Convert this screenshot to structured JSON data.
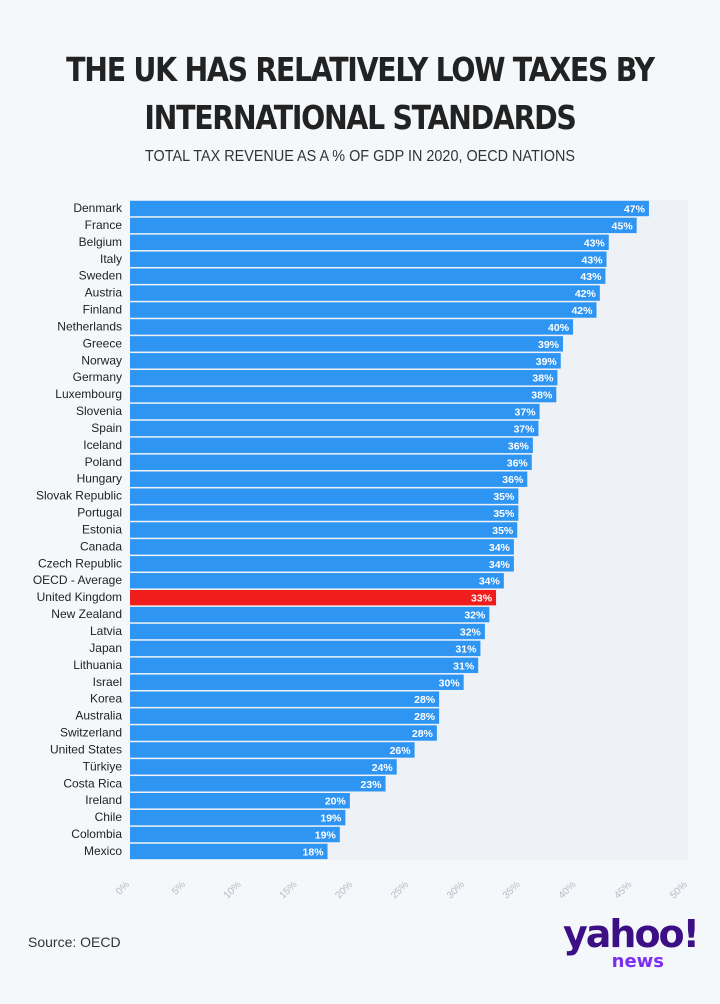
{
  "title_line1": "THE UK HAS RELATIVELY LOW TAXES BY",
  "title_line2": "INTERNATIONAL STANDARDS",
  "subtitle": "TOTAL TAX REVENUE AS A % OF GDP IN 2020, OECD NATIONS",
  "source": "Source: OECD",
  "logo": {
    "main": "yahoo!",
    "sub": "news"
  },
  "colors": {
    "bar": "#2f95f3",
    "highlight": "#f01d1d",
    "background": "#f5f8fb"
  },
  "chart_data": {
    "type": "bar",
    "orientation": "horizontal",
    "title": "THE UK HAS RELATIVELY LOW TAXES BY INTERNATIONAL STANDARDS",
    "subtitle": "TOTAL TAX REVENUE AS A % OF GDP IN 2020, OECD NATIONS",
    "xlim": [
      0,
      50
    ],
    "xticks": [
      "0%",
      "5%",
      "10%",
      "15%",
      "20%",
      "25%",
      "30%",
      "35%",
      "40%",
      "45%",
      "50%"
    ],
    "highlight": "United Kingdom",
    "categories": [
      "Denmark",
      "France",
      "Belgium",
      "Italy",
      "Sweden",
      "Austria",
      "Finland",
      "Netherlands",
      "Greece",
      "Norway",
      "Germany",
      "Luxembourg",
      "Slovenia",
      "Spain",
      "Iceland",
      "Poland",
      "Hungary",
      "Slovak Republic",
      "Portugal",
      "Estonia",
      "Canada",
      "Czech Republic",
      "OECD - Average",
      "United Kingdom",
      "New Zealand",
      "Latvia",
      "Japan",
      "Lithuania",
      "Israel",
      "Korea",
      "Australia",
      "Switzerland",
      "United States",
      "Türkiye",
      "Costa Rica",
      "Ireland",
      "Chile",
      "Colombia",
      "Mexico"
    ],
    "values": [
      46.5,
      45.4,
      42.9,
      42.7,
      42.6,
      42.1,
      41.8,
      39.7,
      38.8,
      38.6,
      38.3,
      38.2,
      36.7,
      36.6,
      36.1,
      36.0,
      35.6,
      34.8,
      34.8,
      34.7,
      34.4,
      34.4,
      33.5,
      32.8,
      32.2,
      31.8,
      31.4,
      31.2,
      29.9,
      27.7,
      27.7,
      27.5,
      25.5,
      23.9,
      22.9,
      19.7,
      19.3,
      18.8,
      17.7
    ],
    "labels": [
      "47%",
      "45%",
      "43%",
      "43%",
      "43%",
      "42%",
      "42%",
      "40%",
      "39%",
      "39%",
      "38%",
      "38%",
      "37%",
      "37%",
      "36%",
      "36%",
      "36%",
      "35%",
      "35%",
      "35%",
      "34%",
      "34%",
      "34%",
      "33%",
      "32%",
      "32%",
      "31%",
      "31%",
      "30%",
      "28%",
      "28%",
      "28%",
      "26%",
      "24%",
      "23%",
      "20%",
      "19%",
      "19%",
      "18%"
    ]
  }
}
